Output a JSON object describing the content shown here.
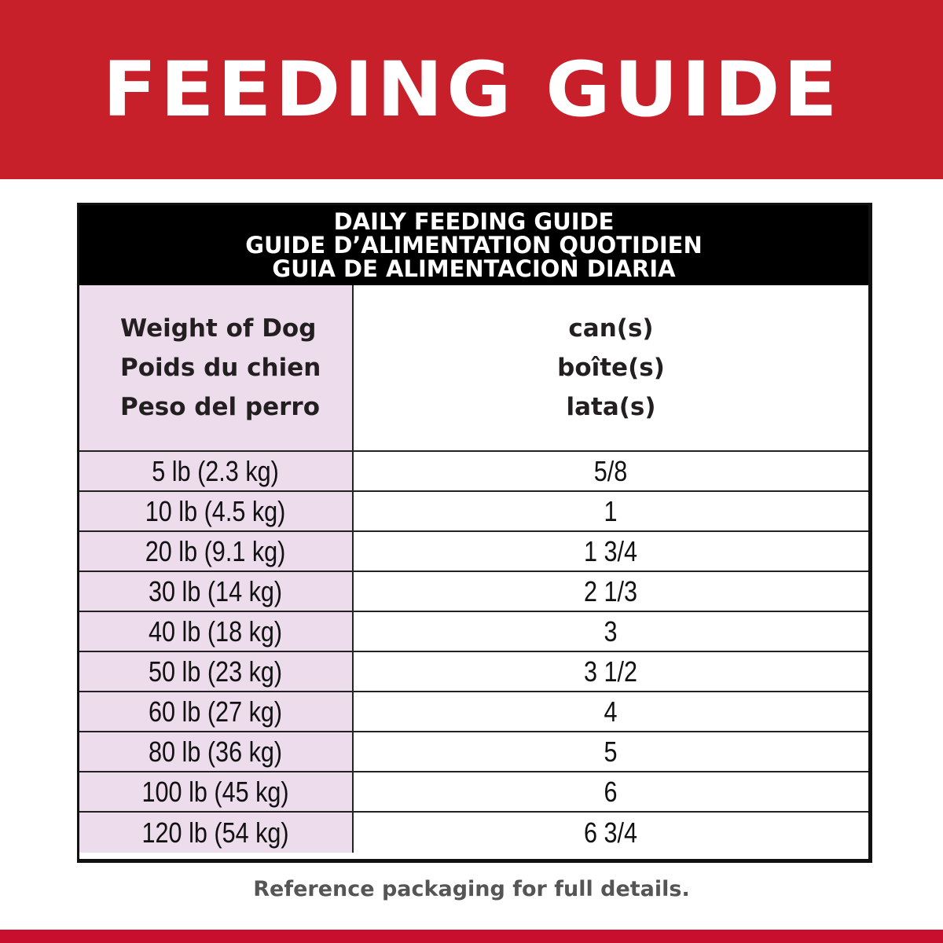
{
  "banner": {
    "title": "FEEDING GUIDE"
  },
  "table": {
    "title_lines": [
      "DAILY FEEDING GUIDE",
      "GUIDE D’ALIMENTATION QUOTIDIEN",
      "GUIA DE ALIMENTACION DIARIA"
    ],
    "col1_header": [
      "Weight of Dog",
      "Poids du chien",
      "Peso del perro"
    ],
    "col2_header": [
      "can(s)",
      "boîte(s)",
      "lata(s)"
    ],
    "rows": [
      {
        "weight": "5 lb (2.3 kg)",
        "cans": "5/8"
      },
      {
        "weight": "10 lb (4.5 kg)",
        "cans": "1"
      },
      {
        "weight": "20 lb (9.1 kg)",
        "cans": "1 3/4"
      },
      {
        "weight": "30 lb (14 kg)",
        "cans": "2 1/3"
      },
      {
        "weight": "40 lb (18 kg)",
        "cans": "3"
      },
      {
        "weight": "50 lb (23 kg)",
        "cans": "3 1/2"
      },
      {
        "weight": "60 lb (27 kg)",
        "cans": "4"
      },
      {
        "weight": "80 lb (36 kg)",
        "cans": "5"
      },
      {
        "weight": "100 lb (45 kg)",
        "cans": "6"
      },
      {
        "weight": "120 lb (54 kg)",
        "cans": "6 3/4"
      }
    ]
  },
  "note": "Reference packaging for full details.",
  "colors": {
    "brand_red": "#c8202a",
    "weight_column_bg": "#ecdcec",
    "header_bg": "#000000"
  }
}
